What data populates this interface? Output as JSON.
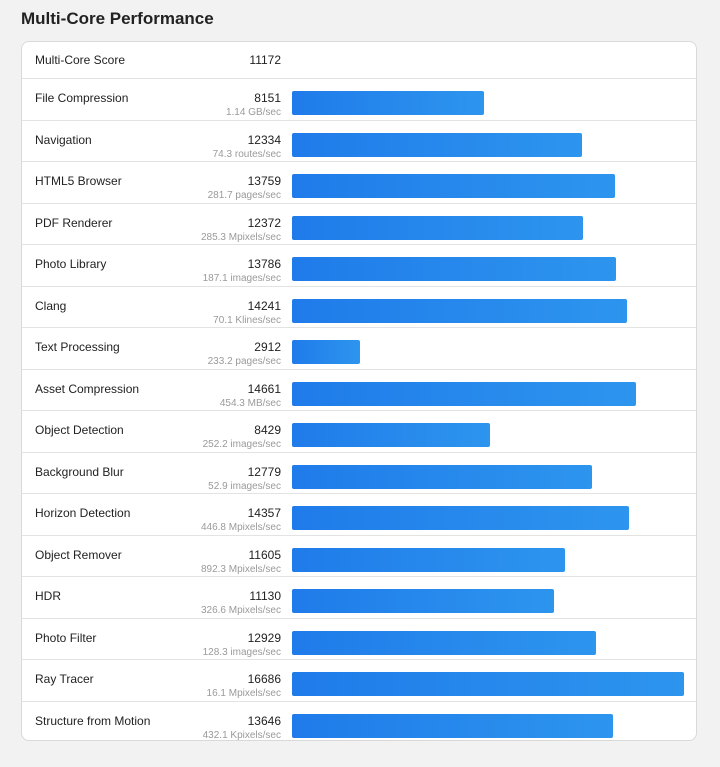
{
  "page": {
    "title": "Multi-Core Performance"
  },
  "colors": {
    "bar_start": "#1f7bea",
    "bar_end": "#2d95ee",
    "background": "#f2f2f2",
    "card": "#ffffff"
  },
  "summary": {
    "label": "Multi-Core Score",
    "score": "11172"
  },
  "chart_data": {
    "type": "bar",
    "orientation": "horizontal",
    "title": "Multi-Core Performance",
    "xlim": [
      0,
      16686
    ],
    "categories": [
      "File Compression",
      "Navigation",
      "HTML5 Browser",
      "PDF Renderer",
      "Photo Library",
      "Clang",
      "Text Processing",
      "Asset Compression",
      "Object Detection",
      "Background Blur",
      "Horizon Detection",
      "Object Remover",
      "HDR",
      "Photo Filter",
      "Ray Tracer",
      "Structure from Motion"
    ],
    "values": [
      8151,
      12334,
      13759,
      12372,
      13786,
      14241,
      2912,
      14661,
      8429,
      12779,
      14357,
      11605,
      11130,
      12929,
      16686,
      13646
    ],
    "rows": [
      {
        "name": "File Compression",
        "score": "8151",
        "rate": "1.14 GB/sec"
      },
      {
        "name": "Navigation",
        "score": "12334",
        "rate": "74.3 routes/sec"
      },
      {
        "name": "HTML5 Browser",
        "score": "13759",
        "rate": "281.7 pages/sec"
      },
      {
        "name": "PDF Renderer",
        "score": "12372",
        "rate": "285.3 Mpixels/sec"
      },
      {
        "name": "Photo Library",
        "score": "13786",
        "rate": "187.1 images/sec"
      },
      {
        "name": "Clang",
        "score": "14241",
        "rate": "70.1 Klines/sec"
      },
      {
        "name": "Text Processing",
        "score": "2912",
        "rate": "233.2 pages/sec"
      },
      {
        "name": "Asset Compression",
        "score": "14661",
        "rate": "454.3 MB/sec"
      },
      {
        "name": "Object Detection",
        "score": "8429",
        "rate": "252.2 images/sec"
      },
      {
        "name": "Background Blur",
        "score": "12779",
        "rate": "52.9 images/sec"
      },
      {
        "name": "Horizon Detection",
        "score": "14357",
        "rate": "446.8 Mpixels/sec"
      },
      {
        "name": "Object Remover",
        "score": "11605",
        "rate": "892.3 Mpixels/sec"
      },
      {
        "name": "HDR",
        "score": "11130",
        "rate": "326.6 Mpixels/sec"
      },
      {
        "name": "Photo Filter",
        "score": "12929",
        "rate": "128.3 images/sec"
      },
      {
        "name": "Ray Tracer",
        "score": "16686",
        "rate": "16.1 Mpixels/sec"
      },
      {
        "name": "Structure from Motion",
        "score": "13646",
        "rate": "432.1 Kpixels/sec"
      }
    ]
  }
}
